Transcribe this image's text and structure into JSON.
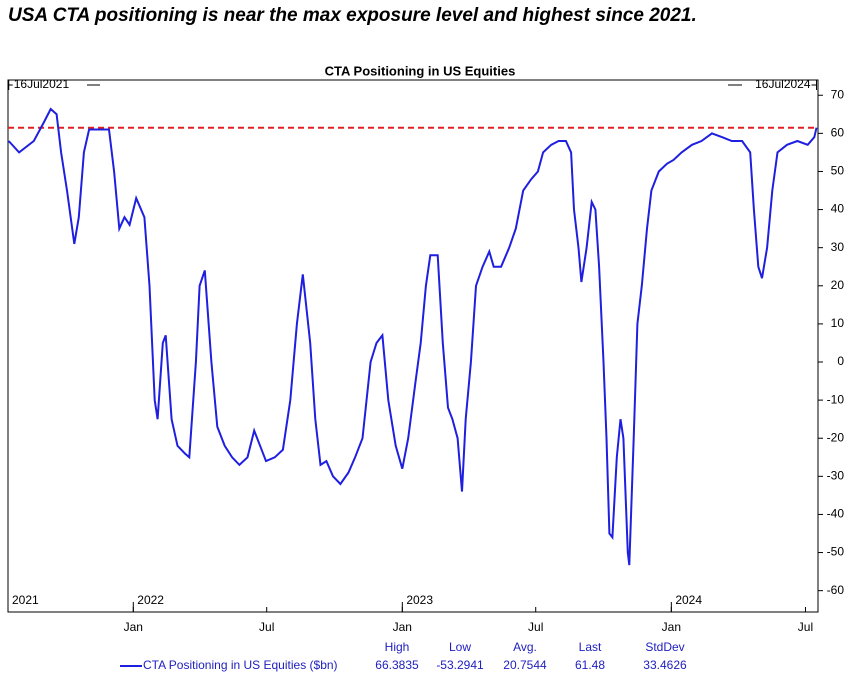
{
  "chart_data": {
    "type": "line",
    "headline": "USA CTA positioning is near the max exposure level and highest since 2021.",
    "title": "CTA Positioning in US Equities",
    "start_label": "16Jul2021",
    "end_label": "16Jul2024",
    "xlim": [
      "2021-07-15",
      "2024-07-18"
    ],
    "xticks": [
      {
        "value": "2022-01-01",
        "label": "Jan"
      },
      {
        "value": "2022-07-01",
        "label": "Jul"
      },
      {
        "value": "2023-01-01",
        "label": "Jan"
      },
      {
        "value": "2023-07-01",
        "label": "Jul"
      },
      {
        "value": "2024-01-01",
        "label": "Jan"
      },
      {
        "value": "2024-07-01",
        "label": "Jul"
      }
    ],
    "year_labels": [
      {
        "value": "2021-07-15",
        "label": "2021"
      },
      {
        "value": "2022-01-01",
        "label": "2022"
      },
      {
        "value": "2023-01-01",
        "label": "2023"
      },
      {
        "value": "2024-01-01",
        "label": "2024"
      }
    ],
    "ylim": [
      -65.6,
      74
    ],
    "yticks": [
      -60,
      -50,
      -40,
      -30,
      -20,
      -10,
      0,
      10,
      20,
      30,
      40,
      50,
      60,
      70
    ],
    "reference_line": {
      "value": 61.48,
      "color": "#e02020"
    },
    "x": [
      "2021-07-16",
      "2021-07-30",
      "2021-08-19",
      "2021-09-02",
      "2021-09-11",
      "2021-09-19",
      "2021-09-25",
      "2021-10-03",
      "2021-10-13",
      "2021-10-19",
      "2021-10-26",
      "2021-11-02",
      "2021-11-16",
      "2021-11-29",
      "2021-12-06",
      "2021-12-13",
      "2021-12-20",
      "2021-12-27",
      "2022-01-05",
      "2022-01-16",
      "2022-01-23",
      "2022-01-30",
      "2022-02-03",
      "2022-02-10",
      "2022-02-14",
      "2022-02-22",
      "2022-03-02",
      "2022-03-12",
      "2022-03-18",
      "2022-03-27",
      "2022-04-01",
      "2022-04-08",
      "2022-04-17",
      "2022-04-25",
      "2022-05-05",
      "2022-05-15",
      "2022-05-25",
      "2022-06-05",
      "2022-06-14",
      "2022-06-22",
      "2022-06-30",
      "2022-07-12",
      "2022-07-23",
      "2022-08-02",
      "2022-08-11",
      "2022-08-19",
      "2022-08-29",
      "2022-09-05",
      "2022-09-12",
      "2022-09-20",
      "2022-09-29",
      "2022-10-09",
      "2022-10-20",
      "2022-10-29",
      "2022-11-08",
      "2022-11-19",
      "2022-11-27",
      "2022-12-05",
      "2022-12-13",
      "2022-12-23",
      "2023-01-01",
      "2023-01-09",
      "2023-01-19",
      "2023-01-26",
      "2023-02-02",
      "2023-02-08",
      "2023-02-18",
      "2023-02-25",
      "2023-03-04",
      "2023-03-10",
      "2023-03-17",
      "2023-03-23",
      "2023-03-28",
      "2023-04-04",
      "2023-04-11",
      "2023-04-20",
      "2023-04-29",
      "2023-05-05",
      "2023-05-15",
      "2023-05-26",
      "2023-06-04",
      "2023-06-14",
      "2023-06-25",
      "2023-07-04",
      "2023-07-11",
      "2023-07-22",
      "2023-08-01",
      "2023-08-11",
      "2023-08-18",
      "2023-08-22",
      "2023-08-28",
      "2023-09-01",
      "2023-09-08",
      "2023-09-15",
      "2023-09-20",
      "2023-09-25",
      "2023-10-01",
      "2023-10-05",
      "2023-10-09",
      "2023-10-13",
      "2023-10-19",
      "2023-10-24",
      "2023-10-28",
      "2023-11-03",
      "2023-11-05",
      "2023-11-11",
      "2023-11-16",
      "2023-11-22",
      "2023-11-29",
      "2023-12-05",
      "2023-12-15",
      "2023-12-26",
      "2024-01-04",
      "2024-01-15",
      "2024-01-29",
      "2024-02-11",
      "2024-02-25",
      "2024-03-10",
      "2024-03-23",
      "2024-04-06",
      "2024-04-17",
      "2024-04-22",
      "2024-04-28",
      "2024-05-03",
      "2024-05-10",
      "2024-05-17",
      "2024-05-24",
      "2024-06-06",
      "2024-06-20",
      "2024-07-04",
      "2024-07-13",
      "2024-07-16"
    ],
    "series": [
      {
        "name": "CTA Positioning in US Equities ($bn)",
        "color": "#1f1fe0",
        "values": [
          58,
          55,
          58,
          63,
          66.3835,
          65,
          55,
          45,
          31,
          38,
          55,
          61,
          61,
          61,
          50,
          35,
          38,
          36,
          43,
          38,
          20,
          -10,
          -15,
          5,
          7,
          -15,
          -22,
          -24,
          -25,
          0,
          20,
          24,
          0,
          -17,
          -22,
          -25,
          -27,
          -25,
          -18,
          -22,
          -26,
          -25,
          -23,
          -10,
          10,
          23,
          5,
          -15,
          -27,
          -26,
          -30,
          -32,
          -29,
          -25,
          -20,
          0,
          5,
          7,
          -10,
          -22,
          -28,
          -20,
          -5,
          5,
          20,
          28,
          28,
          5,
          -12,
          -15,
          -20,
          -34,
          -15,
          0,
          20,
          25,
          29,
          25,
          25,
          30,
          35,
          45,
          48,
          50,
          55,
          57,
          58,
          58,
          55,
          40,
          30,
          21,
          30,
          42,
          40,
          25,
          0,
          -20,
          -45,
          -46,
          -25,
          -15,
          -20,
          -50,
          -53.2941,
          -20,
          10,
          20,
          35,
          45,
          50,
          52,
          53,
          55,
          57,
          58,
          60,
          59,
          58,
          58,
          55,
          40,
          25,
          22,
          30,
          45,
          55,
          57,
          58,
          57,
          59,
          61.48
        ]
      }
    ],
    "stats": [
      {
        "label": "High",
        "value": 66.3835
      },
      {
        "label": "Low",
        "value": -53.2941
      },
      {
        "label": "Avg.",
        "value": 20.7544
      },
      {
        "label": "Last",
        "value": 61.48
      },
      {
        "label": "StdDev",
        "value": 33.4626
      }
    ]
  }
}
